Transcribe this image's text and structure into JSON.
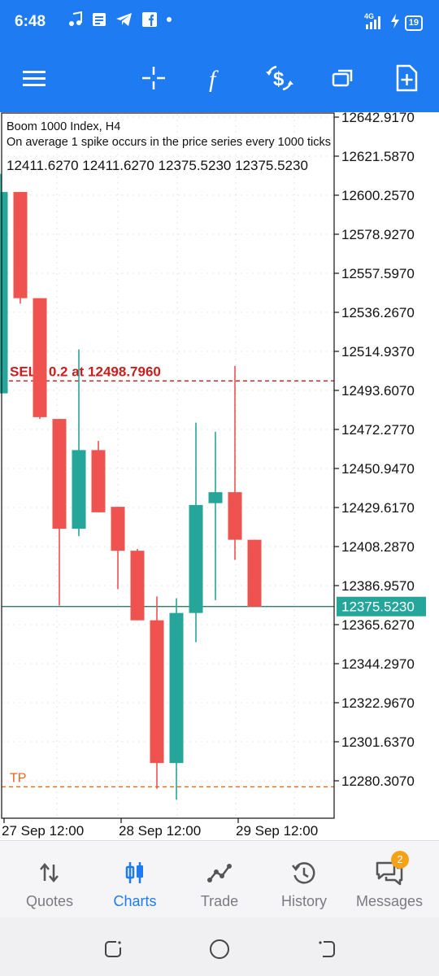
{
  "status_bar": {
    "time": "6:48",
    "network": "4G",
    "battery": "19",
    "icons": [
      "music-icon",
      "news-icon",
      "telegram-icon",
      "facebook-icon",
      "dot-icon",
      "signal-icon",
      "charging-icon",
      "battery-icon"
    ]
  },
  "toolbar": {
    "icons": [
      "menu-icon",
      "crosshair-icon",
      "indicators-icon",
      "trade-dollar-icon",
      "windows-icon",
      "new-order-icon"
    ]
  },
  "chart": {
    "symbol_line": "Boom 1000 Index, H4",
    "description": "On average 1 spike occurs in the price series every 1000 ticks",
    "ohlc_line": "12411.6270 12411.6270 12375.5230 12375.5230",
    "sell_label": "SELL 0.2 at 12498.7960",
    "tp_label": "TP",
    "current_price": "12375.5230",
    "colors": {
      "bull": "#26a69a",
      "bear": "#ef5350",
      "order": "#c81e1e",
      "tp": "#e8651e"
    }
  },
  "chart_data": {
    "type": "candlestick",
    "title": "Boom 1000 Index, H4",
    "ylim": [
      12270,
      12650
    ],
    "y_ticks": [
      "12642.9170",
      "12621.5870",
      "12600.2570",
      "12578.9270",
      "12557.5970",
      "12536.2670",
      "12514.9370",
      "12493.6070",
      "12472.2770",
      "12450.9470",
      "12429.6170",
      "12408.2870",
      "12386.9570",
      "12365.6270",
      "12344.2970",
      "12322.9670",
      "12301.6370",
      "12280.3070"
    ],
    "x_ticks": [
      "27 Sep 12:00",
      "28 Sep 12:00",
      "29 Sep 12:00"
    ],
    "sell_price": 12498.796,
    "tp_price": 12277.0,
    "last_price": 12375.523,
    "candles": [
      {
        "o": 12492.0,
        "h": 12612.0,
        "l": 12492.0,
        "c": 12602.0
      },
      {
        "o": 12602.0,
        "h": 12602.0,
        "l": 12541.0,
        "c": 12544.0
      },
      {
        "o": 12544.0,
        "h": 12544.0,
        "l": 12478.0,
        "c": 12479.0
      },
      {
        "o": 12478.0,
        "h": 12478.0,
        "l": 12376.0,
        "c": 12418.0
      },
      {
        "o": 12418.0,
        "h": 12516.0,
        "l": 12414.0,
        "c": 12461.0
      },
      {
        "o": 12461.0,
        "h": 12466.0,
        "l": 12427.0,
        "c": 12427.0
      },
      {
        "o": 12430.0,
        "h": 12430.0,
        "l": 12385.0,
        "c": 12406.0
      },
      {
        "o": 12406.0,
        "h": 12407.0,
        "l": 12368.0,
        "c": 12368.0
      },
      {
        "o": 12368.0,
        "h": 12381.0,
        "l": 12276.0,
        "c": 12290.0
      },
      {
        "o": 12290.0,
        "h": 12380.0,
        "l": 12270.0,
        "c": 12372.0
      },
      {
        "o": 12372.0,
        "h": 12476.0,
        "l": 12356.0,
        "c": 12431.0
      },
      {
        "o": 12432.0,
        "h": 12471.0,
        "l": 12379.0,
        "c": 12438.0
      },
      {
        "o": 12438.0,
        "h": 12507.0,
        "l": 12401.0,
        "c": 12412.0
      },
      {
        "o": 12412.0,
        "h": 12412.0,
        "l": 12375.5,
        "c": 12375.5
      }
    ]
  },
  "bottom_nav": {
    "items": [
      {
        "label": "Quotes",
        "icon": "quotes-icon"
      },
      {
        "label": "Charts",
        "icon": "charts-icon"
      },
      {
        "label": "Trade",
        "icon": "trade-icon"
      },
      {
        "label": "History",
        "icon": "history-icon"
      },
      {
        "label": "Messages",
        "icon": "messages-icon"
      }
    ],
    "active": "Charts",
    "messages_badge": "2"
  },
  "system_nav": {
    "icons": [
      "recent-apps-icon",
      "home-icon",
      "back-icon"
    ]
  }
}
